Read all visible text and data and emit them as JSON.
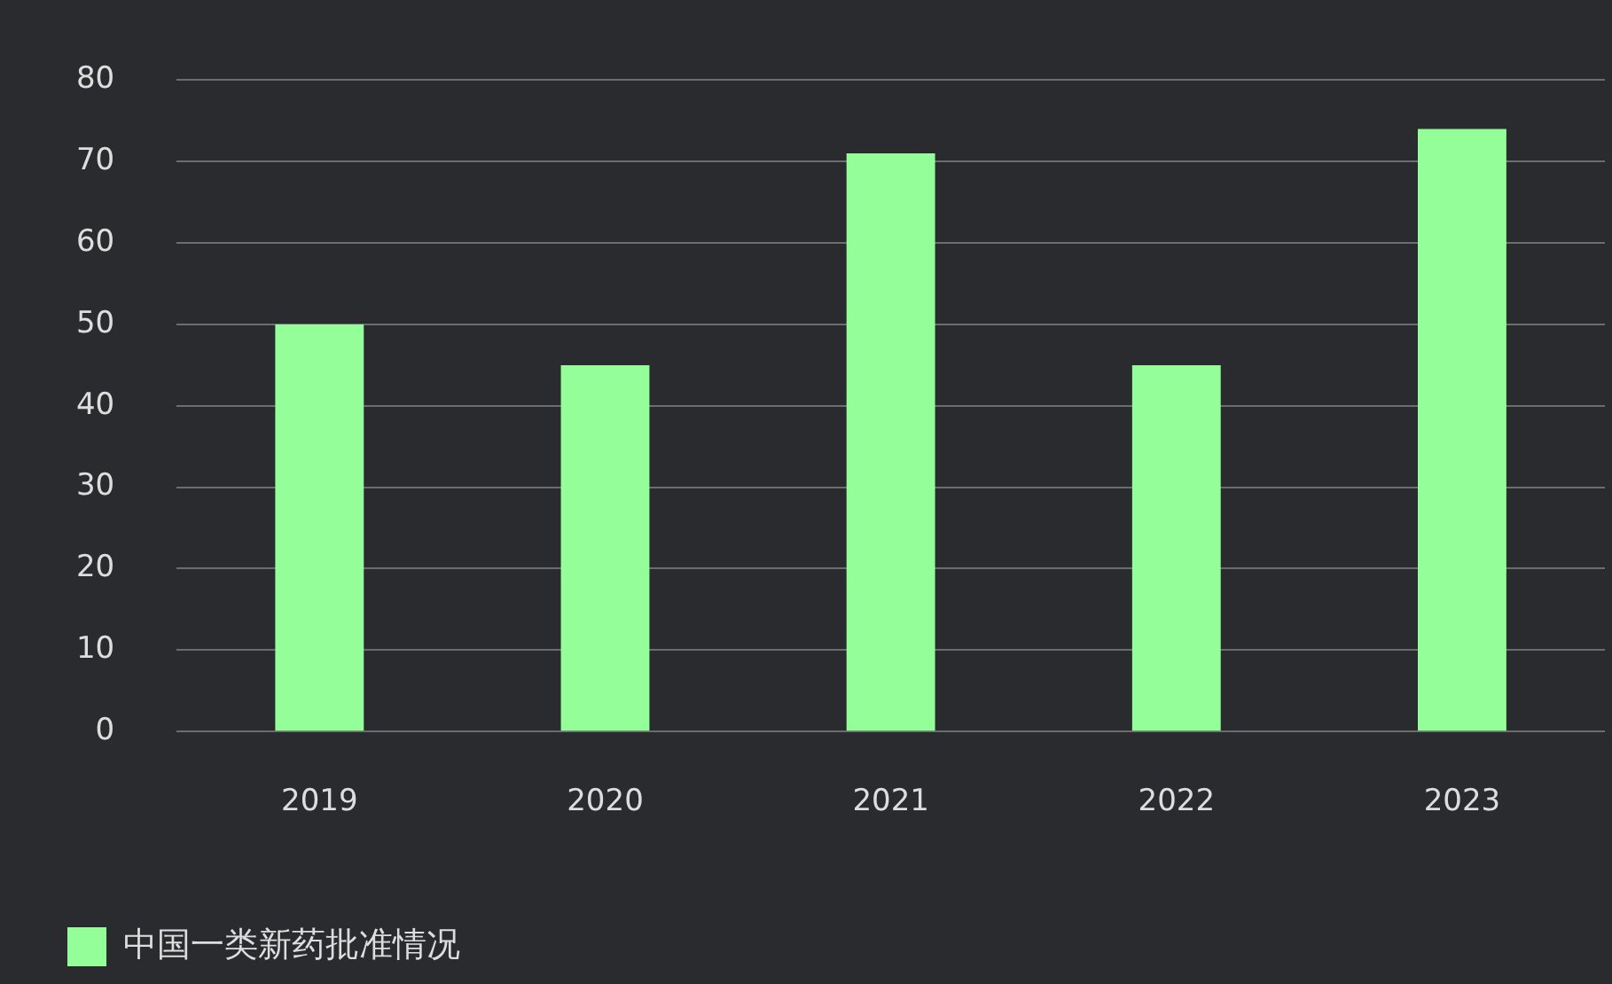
{
  "chart_data": {
    "type": "bar",
    "categories": [
      "2019",
      "2020",
      "2021",
      "2022",
      "2023"
    ],
    "series": [
      {
        "name": "中国一类新药批准情况",
        "color": "#94ff99",
        "values": [
          50,
          45,
          71,
          45,
          74
        ]
      }
    ],
    "ylim": [
      0,
      80
    ],
    "yticks": [
      0,
      10,
      20,
      30,
      40,
      50,
      60,
      70,
      80
    ],
    "grid": "y",
    "legend": "bottom left"
  }
}
